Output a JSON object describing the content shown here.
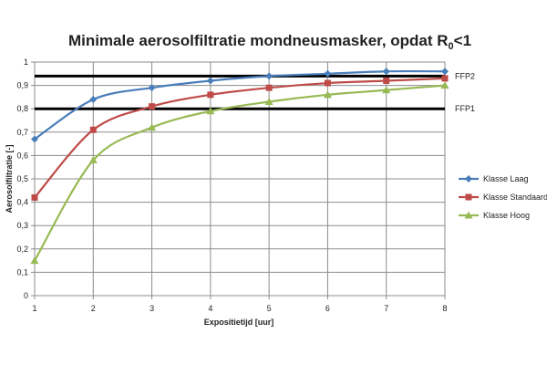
{
  "chart_data": {
    "type": "line",
    "title": {
      "main": "Minimale aerosolfiltratie mondneusmasker, opdat R",
      "sub": "0",
      "tail": "<1"
    },
    "xlabel": "Expositietijd  [uur]",
    "ylabel": "Aerosolfiltratie [-]",
    "x": [
      1,
      2,
      3,
      4,
      5,
      6,
      7,
      8
    ],
    "xlim": [
      1,
      8
    ],
    "ylim": [
      0,
      1
    ],
    "x_ticks": [
      "1",
      "2",
      "3",
      "4",
      "5",
      "6",
      "7",
      "8"
    ],
    "y_ticks": [
      "0",
      "0,1",
      "0,2",
      "0,3",
      "0,4",
      "0,5",
      "0,6",
      "0,7",
      "0,8",
      "0,9",
      "1"
    ],
    "grid": true,
    "legend_position": "right",
    "series": [
      {
        "name": "Klasse Laag",
        "color": "#4a7ebb",
        "marker": "diamond",
        "values": [
          0.67,
          0.84,
          0.89,
          0.92,
          0.94,
          0.95,
          0.96,
          0.96
        ]
      },
      {
        "name": "Klasse Standaard",
        "color": "#be4b48",
        "marker": "square",
        "values": [
          0.42,
          0.71,
          0.81,
          0.86,
          0.89,
          0.91,
          0.92,
          0.93
        ]
      },
      {
        "name": "Klasse Hoog",
        "color": "#98b954",
        "marker": "triangle",
        "values": [
          0.15,
          0.58,
          0.72,
          0.79,
          0.83,
          0.86,
          0.88,
          0.9
        ]
      }
    ],
    "reference_lines": [
      {
        "label": "FFP2",
        "value": 0.94,
        "color": "#000000"
      },
      {
        "label": "FFP1",
        "value": 0.8,
        "color": "#000000"
      }
    ]
  }
}
